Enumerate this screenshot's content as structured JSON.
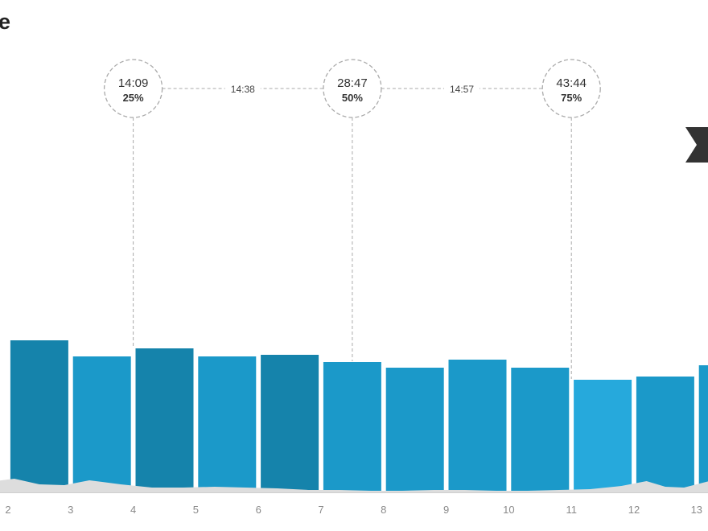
{
  "header": {
    "title": "e"
  },
  "colors": {
    "bar_fill": "#1b99c9",
    "bar_fill_dark": "#1583ab",
    "bar_fill_light": "#26a9dc",
    "elevation_fill": "#dddddd",
    "guide_line": "#aaaaaa",
    "marker_fill": "#333333"
  },
  "icons": {
    "finish_marker": "ribbon-flag-icon"
  },
  "chart_data": {
    "type": "bar",
    "xlabel": "",
    "ylabel": "",
    "grid": false,
    "x": [
      2,
      3,
      4,
      5,
      6,
      7,
      8,
      9,
      10,
      11,
      12,
      13
    ],
    "x_tick_labels": [
      "2",
      "3",
      "4",
      "5",
      "6",
      "7",
      "8",
      "9",
      "10",
      "11",
      "12",
      "13"
    ],
    "ylim": [
      0,
      610
    ],
    "values": [
      190,
      170,
      180,
      170,
      172,
      163,
      156,
      166,
      156,
      141,
      145,
      159
    ],
    "bar_shades": [
      "dark",
      "normal",
      "dark",
      "normal",
      "dark",
      "normal",
      "normal",
      "normal",
      "normal",
      "light",
      "normal",
      "normal"
    ],
    "splits": [
      {
        "x": 4,
        "time": "14:09",
        "percent": "25%"
      },
      {
        "x": 7.5,
        "time": "28:47",
        "percent": "50%"
      },
      {
        "x": 11,
        "time": "43:44",
        "percent": "75%"
      }
    ],
    "split_gaps": [
      {
        "between": [
          0,
          1
        ],
        "label": "14:38"
      },
      {
        "between": [
          1,
          2
        ],
        "label": "14:57"
      }
    ],
    "elevation_profile": {
      "x": [
        1.5,
        1.8,
        2.1,
        2.5,
        2.9,
        3.3,
        3.8,
        4.3,
        4.8,
        5.3,
        5.8,
        6.3,
        6.8,
        7.3,
        7.8,
        8.3,
        8.8,
        9.3,
        9.8,
        10.3,
        10.8,
        11.3,
        11.8,
        12.2,
        12.5,
        12.8,
        13.2,
        13.5
      ],
      "values": [
        10,
        14,
        17,
        10,
        9,
        15,
        10,
        6,
        6,
        7,
        6,
        5,
        3,
        3,
        2,
        2,
        3,
        3,
        2,
        2,
        3,
        4,
        8,
        14,
        7,
        6,
        14,
        12
      ]
    }
  }
}
